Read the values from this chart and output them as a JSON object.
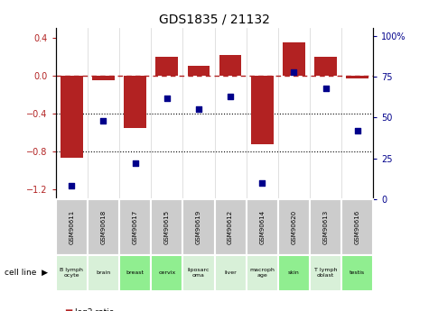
{
  "title": "GDS1835 / 21132",
  "samples": [
    "GSM90611",
    "GSM90618",
    "GSM90617",
    "GSM90615",
    "GSM90619",
    "GSM90612",
    "GSM90614",
    "GSM90620",
    "GSM90613",
    "GSM90616"
  ],
  "cell_lines": [
    "B lymph\nocyte",
    "brain",
    "breast",
    "cervix",
    "liposarc\noma",
    "liver",
    "macroph\nage",
    "skin",
    "T lymph\noblast",
    "testis"
  ],
  "cell_line_colors": [
    "#d8f0d8",
    "#d8f0d8",
    "#90ee90",
    "#90ee90",
    "#d8f0d8",
    "#d8f0d8",
    "#d8f0d8",
    "#90ee90",
    "#d8f0d8",
    "#90ee90"
  ],
  "log2_ratio": [
    -0.87,
    -0.05,
    -0.55,
    0.2,
    0.1,
    0.22,
    -0.72,
    0.35,
    0.2,
    -0.03
  ],
  "percentile_rank": [
    8,
    48,
    22,
    62,
    55,
    63,
    10,
    78,
    68,
    42
  ],
  "bar_color": "#b22222",
  "dot_color": "#00008b",
  "dashed_line_color": "#b22222",
  "ylim_left": [
    -1.3,
    0.5
  ],
  "ylim_right": [
    0,
    105
  ],
  "right_yticks": [
    0,
    25,
    50,
    75,
    100
  ],
  "right_yticklabels": [
    "0",
    "25",
    "50",
    "75",
    "100%"
  ],
  "left_yticks": [
    -1.2,
    -0.8,
    -0.4,
    0.0,
    0.4
  ],
  "dotted_lines": [
    -0.4,
    -0.8
  ],
  "sample_bg": "#cccccc",
  "plot_bg": "#ffffff"
}
